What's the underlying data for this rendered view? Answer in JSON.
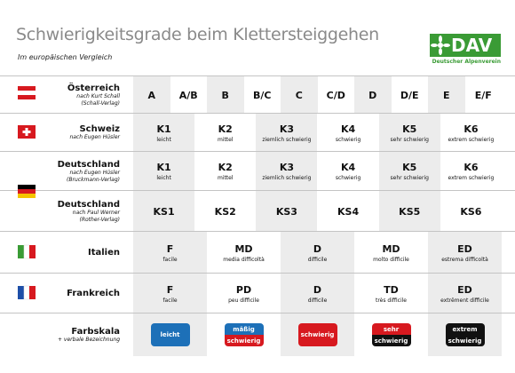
{
  "header": {
    "title": "Schwierigkeitsgrade beim Klettersteiggehen",
    "subtitle": "Im europäischen Vergleich"
  },
  "logo": {
    "text": "DAV",
    "tagline": "Deutscher Alpenverein"
  },
  "table": {
    "rows": [
      {
        "label": "Österreich",
        "notes": [
          "nach Kurt Schall",
          "(Schall-Verlag)"
        ],
        "cells": [
          {
            "grade": "A"
          },
          {
            "grade": "A/B"
          },
          {
            "grade": "B"
          },
          {
            "grade": "B/C"
          },
          {
            "grade": "C"
          },
          {
            "grade": "C/D"
          },
          {
            "grade": "D"
          },
          {
            "grade": "D/E"
          },
          {
            "grade": "E"
          },
          {
            "grade": "E/F"
          }
        ]
      },
      {
        "label": "Schweiz",
        "notes": [
          "nach Eugen Hüsler"
        ],
        "cells": [
          {
            "grade": "K1",
            "text": "leicht"
          },
          {
            "grade": "K2",
            "text": "mittel"
          },
          {
            "grade": "K3",
            "text": "ziemlich schwierig"
          },
          {
            "grade": "K4",
            "text": "schwierig"
          },
          {
            "grade": "K5",
            "text": "sehr schwierig"
          },
          {
            "grade": "K6",
            "text": "extrem schwierig"
          }
        ]
      },
      {
        "label": "Deutschland",
        "notes": [
          "nach Eugen Hüsler",
          "(Bruckmann-Verlag)"
        ],
        "cells": [
          {
            "grade": "K1",
            "text": "leicht"
          },
          {
            "grade": "K2",
            "text": "mittel"
          },
          {
            "grade": "K3",
            "text": "ziemlich schwierig"
          },
          {
            "grade": "K4",
            "text": "schwierig"
          },
          {
            "grade": "K5",
            "text": "sehr schwierig"
          },
          {
            "grade": "K6",
            "text": "extrem schwierig"
          }
        ]
      },
      {
        "label": "Deutschland",
        "notes": [
          "nach Paul Werner",
          "(Rother-Verlag)"
        ],
        "cells": [
          {
            "grade": "KS1"
          },
          {
            "grade": "KS2"
          },
          {
            "grade": "KS3"
          },
          {
            "grade": "KS4"
          },
          {
            "grade": "KS5"
          },
          {
            "grade": "KS6"
          }
        ]
      },
      {
        "label": "Italien",
        "cells": [
          {
            "grade": "F",
            "text": "facile"
          },
          {
            "grade": "MD",
            "text": "media difficoltà"
          },
          {
            "grade": "D",
            "text": "difficile"
          },
          {
            "grade": "MD",
            "text": "molto difficile"
          },
          {
            "grade": "ED",
            "text": "estrema difficoltà"
          }
        ]
      },
      {
        "label": "Frankreich",
        "cells": [
          {
            "grade": "F",
            "text": "facile"
          },
          {
            "grade": "PD",
            "text": "peu difficile"
          },
          {
            "grade": "D",
            "text": "difficile"
          },
          {
            "grade": "TD",
            "text": "très difficile"
          },
          {
            "grade": "ED",
            "text": "extrêment difficile"
          }
        ]
      },
      {
        "label": "Farbskala",
        "notes": [
          "+ verbale Bezeichnung"
        ],
        "cells": [
          {
            "badge": [
              "leicht"
            ],
            "colors": [
              "#1d70b8"
            ]
          },
          {
            "badge": [
              "mäßig",
              "schwierig"
            ],
            "colors": [
              "#1d70b8",
              "#d7191f"
            ]
          },
          {
            "badge": [
              "schwierig"
            ],
            "colors": [
              "#d7191f"
            ]
          },
          {
            "badge": [
              "sehr",
              "schwierig"
            ],
            "colors": [
              "#d7191f",
              "#111111"
            ]
          },
          {
            "badge": [
              "extrem",
              "schwierig"
            ],
            "colors": [
              "#111111"
            ]
          }
        ]
      }
    ]
  }
}
